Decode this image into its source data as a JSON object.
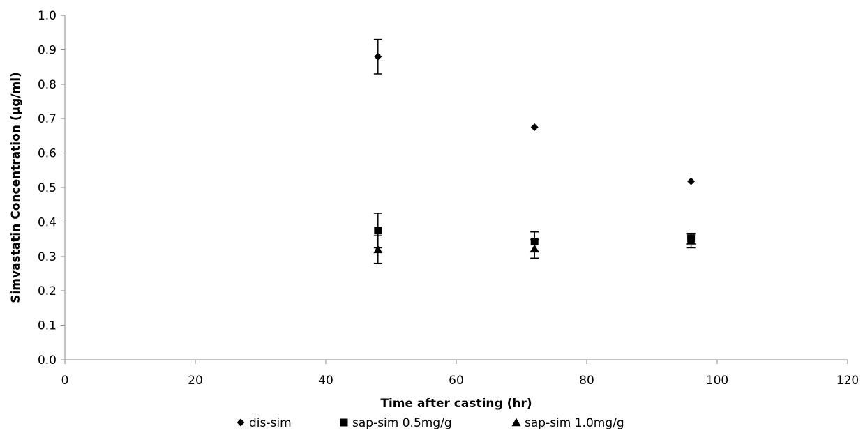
{
  "chart_data": {
    "type": "scatter",
    "xlabel": "Time after casting (hr)",
    "ylabel": "Simvastatin Concentration (µg/ml)",
    "xlim": [
      0,
      120
    ],
    "ylim": [
      0.0,
      1.0
    ],
    "x_ticks": [
      "0",
      "20",
      "40",
      "60",
      "80",
      "100",
      "120"
    ],
    "y_ticks": [
      "0.0",
      "0.1",
      "0.2",
      "0.3",
      "0.4",
      "0.5",
      "0.6",
      "0.7",
      "0.8",
      "0.9",
      "1.0"
    ],
    "grid": false,
    "legend_position": "bottom",
    "series": [
      {
        "name": "dis-sim",
        "marker": "diamond",
        "color": "#000000",
        "points": [
          {
            "x": 48,
            "y": 0.88,
            "err_low": 0.83,
            "err_high": 0.93
          },
          {
            "x": 72,
            "y": 0.675,
            "err_low": 0.675,
            "err_high": 0.675
          },
          {
            "x": 96,
            "y": 0.518,
            "err_low": 0.518,
            "err_high": 0.518
          }
        ]
      },
      {
        "name": "sap-sim 0.5mg/g",
        "marker": "square",
        "color": "#000000",
        "points": [
          {
            "x": 48,
            "y": 0.375,
            "err_low": 0.325,
            "err_high": 0.425
          },
          {
            "x": 72,
            "y": 0.343,
            "err_low": 0.315,
            "err_high": 0.371
          },
          {
            "x": 96,
            "y": 0.352,
            "err_low": 0.337,
            "err_high": 0.367
          }
        ]
      },
      {
        "name": "sap-sim 1.0mg/g",
        "marker": "triangle",
        "color": "#000000",
        "points": [
          {
            "x": 48,
            "y": 0.32,
            "err_low": 0.28,
            "err_high": 0.36
          },
          {
            "x": 72,
            "y": 0.322,
            "err_low": 0.295,
            "err_high": 0.349
          },
          {
            "x": 96,
            "y": 0.345,
            "err_low": 0.325,
            "err_high": 0.365
          }
        ]
      }
    ]
  }
}
